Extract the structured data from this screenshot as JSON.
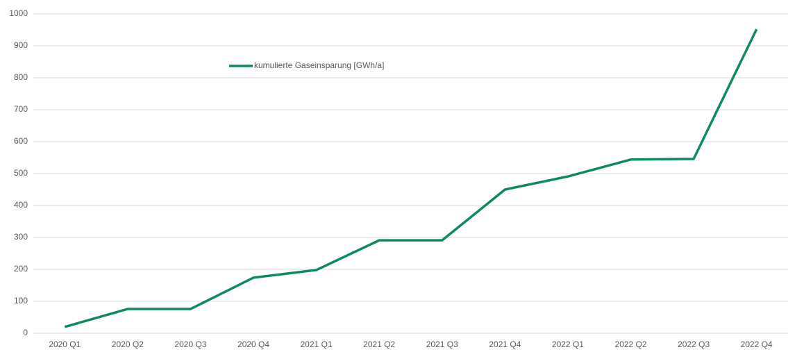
{
  "chart_data": {
    "type": "line",
    "categories": [
      "2020 Q1",
      "2020 Q2",
      "2020 Q3",
      "2020 Q4",
      "2021 Q1",
      "2021 Q2",
      "2021 Q3",
      "2021 Q4",
      "2022 Q1",
      "2022 Q2",
      "2022 Q3",
      "2022 Q4"
    ],
    "series": [
      {
        "name": "kumulierte Gaseinsparung [GWh/a]",
        "color": "#0e8a5f",
        "values": [
          20,
          76,
          76,
          174,
          198,
          291,
          291,
          450,
          491,
          544,
          546,
          952
        ]
      }
    ],
    "ylim": [
      0,
      1000
    ],
    "yticks": [
      0,
      100,
      200,
      300,
      400,
      500,
      600,
      700,
      800,
      900,
      1000
    ],
    "grid": true,
    "legend": "top"
  }
}
